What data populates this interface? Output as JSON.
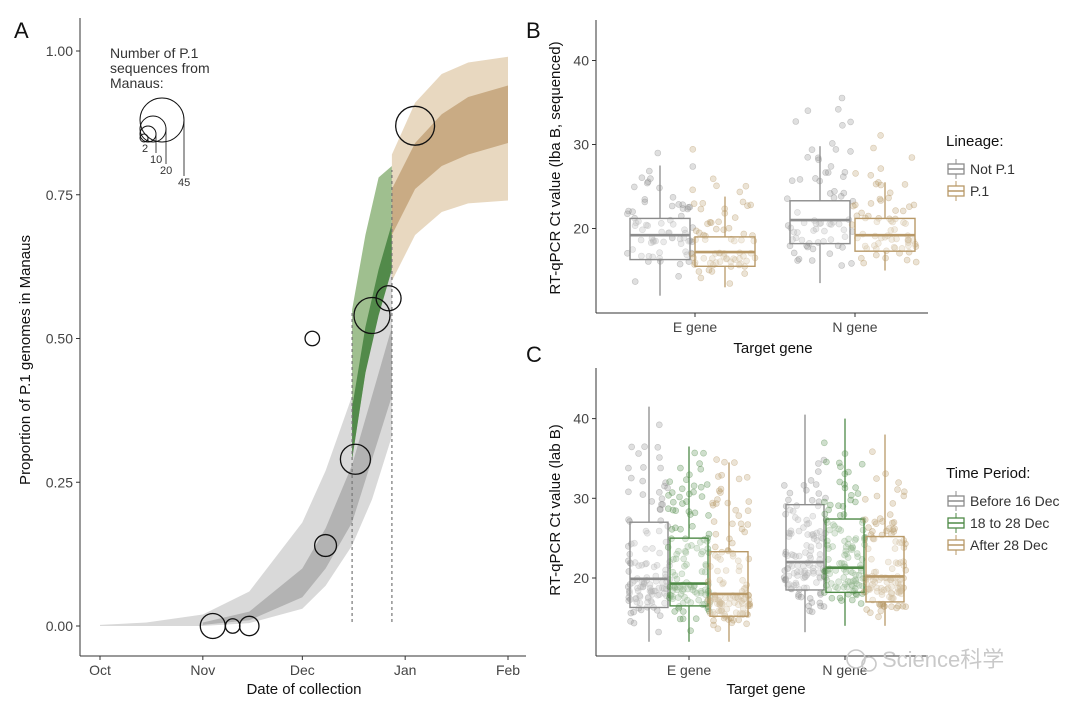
{
  "panels": {
    "a": "A",
    "b": "B",
    "c": "C"
  },
  "chart_data": [
    {
      "type": "line",
      "panel": "A",
      "xlabel": "Date of collection",
      "ylabel": "Proportion of P.1 genomes in Manaus",
      "x_ticks": [
        "Oct",
        "Nov",
        "Dec",
        "Jan",
        "Feb"
      ],
      "y_ticks": [
        "0.00",
        "0.25",
        "0.50",
        "0.75",
        "1.00"
      ],
      "xlim": [
        "2020-10-01",
        "2021-02-01"
      ],
      "ylim": [
        0,
        1.05
      ],
      "size_legend": {
        "title": "Number of P.1 sequences from Manaus:",
        "sizes": [
          2,
          10,
          20,
          45
        ]
      },
      "points": [
        {
          "date": "2020-11-04",
          "p": 0.0,
          "n": 10
        },
        {
          "date": "2020-11-10",
          "p": 0.0,
          "n": 2
        },
        {
          "date": "2020-11-15",
          "p": 0.0,
          "n": 5
        },
        {
          "date": "2020-12-04",
          "p": 0.5,
          "n": 2
        },
        {
          "date": "2020-12-08",
          "p": 0.14,
          "n": 7
        },
        {
          "date": "2020-12-17",
          "p": 0.29,
          "n": 16
        },
        {
          "date": "2020-12-22",
          "p": 0.54,
          "n": 25
        },
        {
          "date": "2020-12-27",
          "p": 0.57,
          "n": 10
        },
        {
          "date": "2021-01-04",
          "p": 0.87,
          "n": 30
        }
      ],
      "dashed_lines": [
        "2020-12-16",
        "2020-12-28"
      ],
      "bands": [
        {
          "name": "",
          "color": "#d9d9d9",
          "x": [
            "2020-10-01",
            "2020-10-15",
            "2020-11-01",
            "2020-11-15",
            "2020-12-01",
            "2020-12-08",
            "2020-12-16",
            "2020-12-22",
            "2020-12-28"
          ],
          "lo": [
            0,
            0,
            0,
            0.005,
            0.03,
            0.07,
            0.14,
            0.22,
            0.33
          ],
          "hi": [
            0.002,
            0.006,
            0.02,
            0.06,
            0.18,
            0.27,
            0.4,
            0.52,
            0.62
          ]
        },
        {
          "name": "",
          "color": "#b3b3b3",
          "x": [
            "2020-11-01",
            "2020-11-15",
            "2020-12-01",
            "2020-12-08",
            "2020-12-16",
            "2020-12-22",
            "2020-12-28"
          ],
          "lo": [
            0.002,
            0.01,
            0.05,
            0.1,
            0.18,
            0.29,
            0.4
          ],
          "hi": [
            0.006,
            0.025,
            0.1,
            0.17,
            0.28,
            0.4,
            0.52
          ]
        },
        {
          "name": "",
          "color": "#9fbf8f",
          "x": [
            "2020-12-16",
            "2020-12-20",
            "2020-12-24",
            "2020-12-28"
          ],
          "lo": [
            0.29,
            0.44,
            0.58,
            0.68
          ],
          "hi": [
            0.55,
            0.68,
            0.78,
            0.8
          ]
        },
        {
          "name": "",
          "color": "#528a4a",
          "x": [
            "2020-12-16",
            "2020-12-20",
            "2020-12-24",
            "2020-12-28"
          ],
          "lo": [
            0.29,
            0.44,
            0.54,
            0.62
          ],
          "hi": [
            0.38,
            0.52,
            0.62,
            0.7
          ]
        },
        {
          "name": "",
          "color": "#e8d8c0",
          "x": [
            "2020-12-28",
            "2021-01-04",
            "2021-01-12",
            "2021-01-20",
            "2021-02-01"
          ],
          "lo": [
            0.6,
            0.68,
            0.72,
            0.735,
            0.74
          ],
          "hi": [
            0.82,
            0.91,
            0.96,
            0.98,
            0.99
          ]
        },
        {
          "name": "",
          "color": "#c9ab84",
          "x": [
            "2020-12-28",
            "2021-01-04",
            "2021-01-12",
            "2021-01-20",
            "2021-02-01"
          ],
          "lo": [
            0.68,
            0.76,
            0.8,
            0.82,
            0.84
          ],
          "hi": [
            0.76,
            0.84,
            0.89,
            0.92,
            0.94
          ]
        }
      ]
    },
    {
      "type": "box",
      "panel": "B",
      "xlabel": "Target gene",
      "ylabel": "RT-qPCR Ct value (lba B, sequenced)",
      "categories": [
        "E gene",
        "N gene"
      ],
      "y_ticks": [
        20,
        30,
        40
      ],
      "ylim": [
        11,
        45
      ],
      "legend": {
        "title": "Lineage:",
        "items": [
          "Not P.1",
          "P.1"
        ]
      },
      "series": [
        {
          "name": "Not P.1",
          "color": "#8c8c8c",
          "boxes": [
            {
              "category": "E gene",
              "q1": 16.3,
              "median": 19.2,
              "q3": 21.2,
              "wlo": 12,
              "whi": 27.5,
              "jitter_range": [
                12,
                34
              ]
            },
            {
              "category": "N gene",
              "q1": 18.2,
              "median": 21.0,
              "q3": 23.3,
              "wlo": 13.5,
              "whi": 29.8,
              "jitter_range": [
                13,
                43
              ]
            }
          ]
        },
        {
          "name": "P.1",
          "color": "#b89968",
          "boxes": [
            {
              "category": "E gene",
              "q1": 15.5,
              "median": 17.2,
              "q3": 19.0,
              "wlo": 13,
              "whi": 23.8,
              "jitter_range": [
                13,
                30.5
              ]
            },
            {
              "category": "N gene",
              "q1": 17.3,
              "median": 19.2,
              "q3": 21.2,
              "wlo": 15,
              "whi": 25.5,
              "jitter_range": [
                15,
                32.8
              ]
            }
          ]
        }
      ]
    },
    {
      "type": "box",
      "panel": "C",
      "xlabel": "Target gene",
      "ylabel": "RT-qPCR Ct value (lab B)",
      "categories": [
        "E gene",
        "N gene"
      ],
      "y_ticks": [
        20,
        30,
        40
      ],
      "ylim": [
        10,
        46
      ],
      "legend": {
        "title": "Time Period:",
        "items": [
          "Before 16 Dec",
          "18 to 28 Dec",
          "After 28 Dec"
        ]
      },
      "series": [
        {
          "name": "Before 16 Dec",
          "color": "#8c8c8c",
          "boxes": [
            {
              "category": "E gene",
              "q1": 16.3,
              "median": 19.9,
              "q3": 27.0,
              "wlo": 12,
              "whi": 41.5,
              "jitter_range": [
                12,
                44.5
              ]
            },
            {
              "category": "N gene",
              "q1": 18.5,
              "median": 22.0,
              "q3": 29.2,
              "wlo": 13.2,
              "whi": 40.5,
              "jitter_range": [
                13,
                40.5
              ]
            }
          ]
        },
        {
          "name": "18 to 28 Dec",
          "color": "#4f8a47",
          "boxes": [
            {
              "category": "E gene",
              "q1": 16.5,
              "median": 19.3,
              "q3": 25.0,
              "wlo": 12,
              "whi": 36.5,
              "jitter_range": [
                12,
                42
              ]
            },
            {
              "category": "N gene",
              "q1": 18.2,
              "median": 21.3,
              "q3": 27.4,
              "wlo": 14,
              "whi": 40,
              "jitter_range": [
                14,
                40
              ]
            }
          ]
        },
        {
          "name": "After 28 Dec",
          "color": "#b89968",
          "boxes": [
            {
              "category": "E gene",
              "q1": 15.2,
              "median": 18.0,
              "q3": 23.3,
              "wlo": 12,
              "whi": 34.5,
              "jitter_range": [
                12,
                42.5
              ]
            },
            {
              "category": "N gene",
              "q1": 17.0,
              "median": 20.2,
              "q3": 25.2,
              "wlo": 14,
              "whi": 38,
              "jitter_range": [
                14,
                39.5
              ]
            }
          ]
        }
      ]
    }
  ],
  "watermark": "Science科学"
}
